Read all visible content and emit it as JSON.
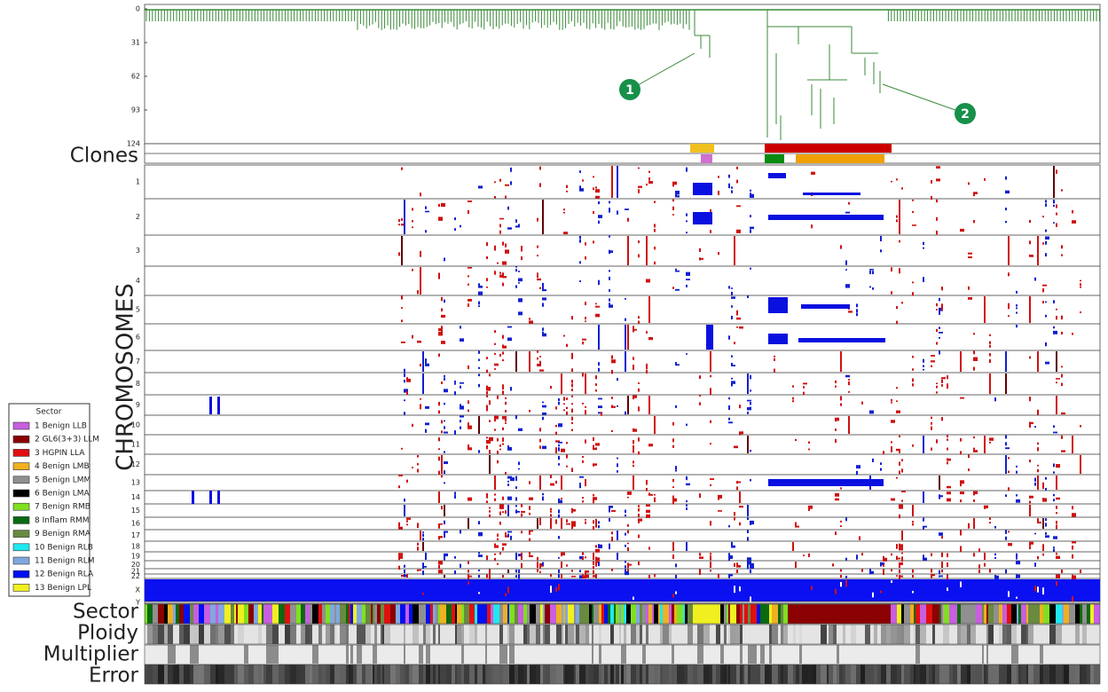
{
  "figure": {
    "dendrogram": {
      "yticks": [
        0,
        31,
        62,
        93,
        124
      ]
    },
    "row_labels": {
      "clones": "Clones",
      "chromosomes": "CHROMOSOMES",
      "sector": "Sector",
      "ploidy": "Ploidy",
      "multiplier": "Multiplier",
      "error": "Error"
    },
    "chromosomes": [
      "1",
      "2",
      "3",
      "4",
      "5",
      "6",
      "7",
      "8",
      "9",
      "10",
      "11",
      "12",
      "13",
      "14",
      "15",
      "16",
      "17",
      "18",
      "19",
      "20",
      "21",
      "22",
      "X",
      "Y"
    ],
    "legend": {
      "title": "Sector",
      "items": [
        {
          "label": "1 Benign LLB",
          "color": "#c85ee0"
        },
        {
          "label": "2 GL6(3+3) LLM",
          "color": "#8b0000"
        },
        {
          "label": "3 HGPIN LLA",
          "color": "#e01010"
        },
        {
          "label": "4 Benign LMB",
          "color": "#f0b020"
        },
        {
          "label": "5 Benign LMM",
          "color": "#909090"
        },
        {
          "label": "6 Benign LMA",
          "color": "#000000"
        },
        {
          "label": "7 Benign RMB",
          "color": "#80e020"
        },
        {
          "label": "8 Inflam RMM",
          "color": "#0a6a10"
        },
        {
          "label": "9 Benign RMA",
          "color": "#6a8a40"
        },
        {
          "label": "10 Benign RLB",
          "color": "#20e8f0"
        },
        {
          "label": "11 Benign RLM",
          "color": "#80a8e0"
        },
        {
          "label": "12 Benign RLA",
          "color": "#0010f0"
        },
        {
          "label": "13 Benign LPL",
          "color": "#f0f020"
        }
      ]
    },
    "annotations": [
      "1",
      "2"
    ]
  }
}
